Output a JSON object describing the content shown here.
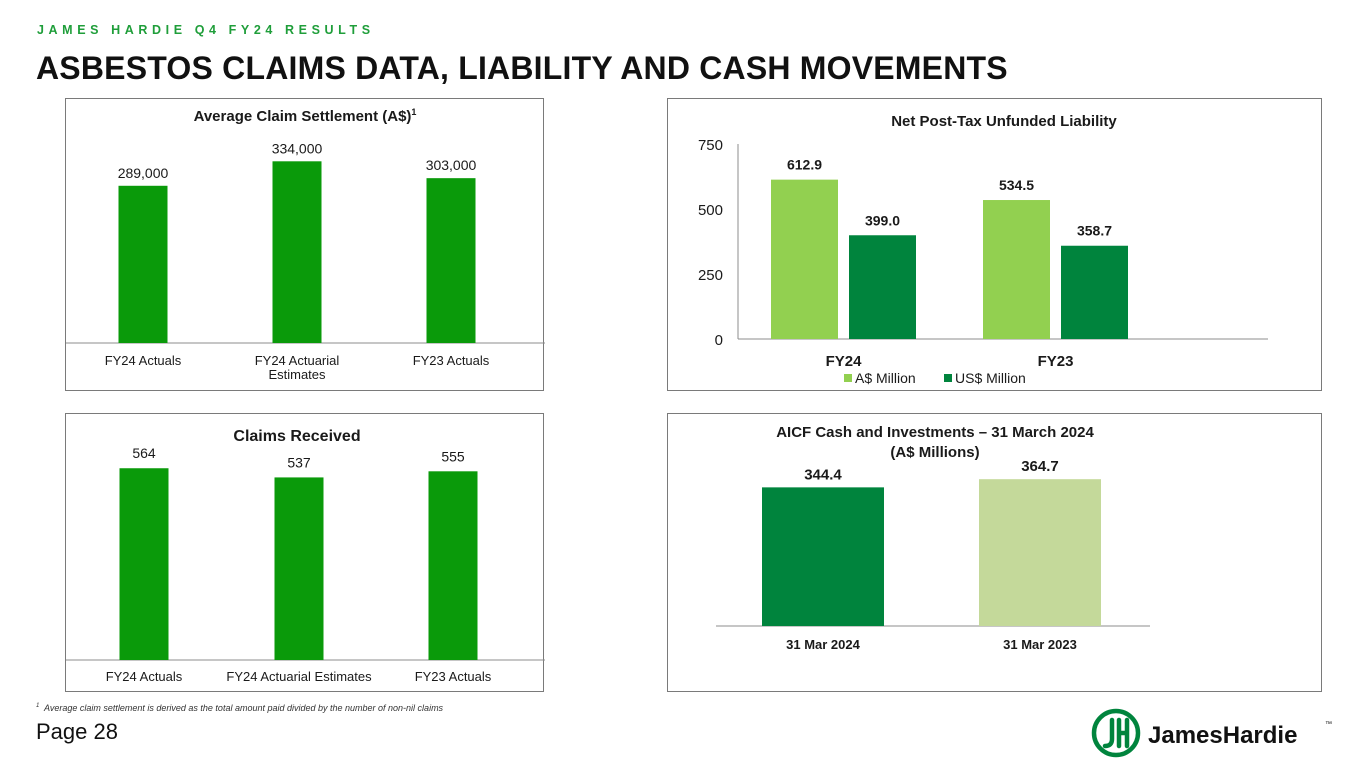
{
  "header": {
    "kicker": "JAMES HARDIE Q4 FY24 RESULTS",
    "title": "ASBESTOS CLAIMS DATA, LIABILITY AND CASH MOVEMENTS"
  },
  "chart_data": [
    {
      "id": "avg-claim",
      "type": "bar",
      "title": "Average Claim Settlement (A$)",
      "title_sup": "1",
      "categories": [
        "FY24 Actuals",
        "FY24 Actuarial Estimates",
        "FY23 Actuals"
      ],
      "category_lines": [
        [
          "FY24 Actuals"
        ],
        [
          "FY24 Actuarial",
          "Estimates"
        ],
        [
          "FY23 Actuals"
        ]
      ],
      "values": [
        289000,
        334000,
        303000
      ],
      "value_labels": [
        "289,000",
        "334,000",
        "303,000"
      ],
      "ylim": [
        0,
        375000
      ],
      "color": "#0a9a0a"
    },
    {
      "id": "liability",
      "type": "bar",
      "title": "Net Post-Tax Unfunded Liability",
      "categories": [
        "FY24",
        "FY23"
      ],
      "series": [
        {
          "name": "A$ Million",
          "values": [
            612.9,
            534.5
          ],
          "value_labels": [
            "612.9",
            "534.5"
          ],
          "color": "#92d050"
        },
        {
          "name": "US$ Million",
          "values": [
            399.0,
            358.7
          ],
          "value_labels": [
            "399.0",
            "358.7"
          ],
          "color": "#00843d"
        }
      ],
      "y_ticks": [
        0,
        250,
        500,
        750
      ],
      "y_tick_labels": [
        "0",
        "250",
        "500",
        "750"
      ],
      "ylim": [
        0,
        750
      ],
      "legend": "bottom"
    },
    {
      "id": "claims",
      "type": "bar",
      "title": "Claims Received",
      "categories": [
        "FY24 Actuals",
        "FY24 Actuarial Estimates",
        "FY23 Actuals"
      ],
      "values": [
        564,
        537,
        555
      ],
      "value_labels": [
        "564",
        "537",
        "555"
      ],
      "ylim": [
        0,
        600
      ],
      "color": "#0a9a0a"
    },
    {
      "id": "aicf",
      "type": "bar",
      "title_lines": [
        "AICF Cash and Investments – 31 March 2024",
        "(A$ Millions)"
      ],
      "categories": [
        "31 Mar 2024",
        "31 Mar 2023"
      ],
      "values": [
        344.4,
        364.7
      ],
      "value_labels": [
        "344.4",
        "364.7"
      ],
      "colors": [
        "#00843d",
        "#c4d99a"
      ],
      "ylim": [
        0,
        390
      ]
    }
  ],
  "footnote": {
    "sup": "1",
    "text": "Average claim settlement is derived as the total amount paid divided by the number of non-nil claims"
  },
  "page": {
    "label": "Page 28"
  },
  "logo": {
    "icon": "jh-monogram-icon",
    "text": "JamesHardie",
    "tm": "™",
    "color": "#00843d"
  }
}
